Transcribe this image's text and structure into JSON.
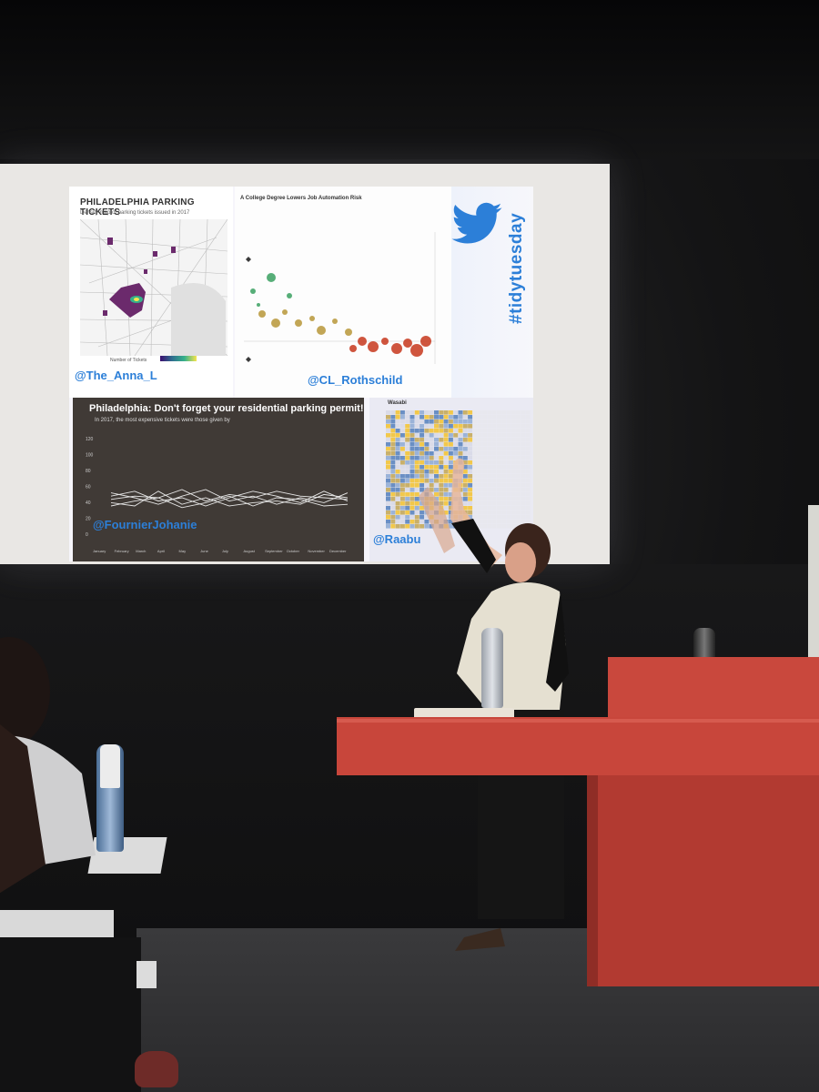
{
  "slide": {
    "panel1": {
      "title": "PHILADELPHIA PARKING TICKETS",
      "subtitle": "Density map of parking tickets issued in 2017",
      "legend_label": "Number of Tickets",
      "credit": "@The_Anna_L"
    },
    "panel2": {
      "title": "A College Degree Lowers Job Automation Risk",
      "credit": "@CL_Rothschild"
    },
    "brand": {
      "hashtag": "#tidytuesday",
      "icon": "twitter-bird-icon"
    },
    "panel3": {
      "title": "Philadelphia: Don't forget your residential parking permit!",
      "subtitle": "In 2017, the most expensive tickets were those given by",
      "credit": "@FournierJohanie",
      "y_ticks": [
        "120",
        "100",
        "80",
        "60",
        "40",
        "20",
        "0"
      ],
      "months": [
        "January",
        "February",
        "March",
        "April",
        "May",
        "June",
        "July",
        "August",
        "September",
        "October",
        "November",
        "December"
      ]
    },
    "panel4": {
      "label": "Wasabi",
      "credit": "@Raabu"
    }
  },
  "colors": {
    "credit": "#2c7fd8",
    "podium": "#c8463b",
    "panel3_bg": "#403a36"
  }
}
